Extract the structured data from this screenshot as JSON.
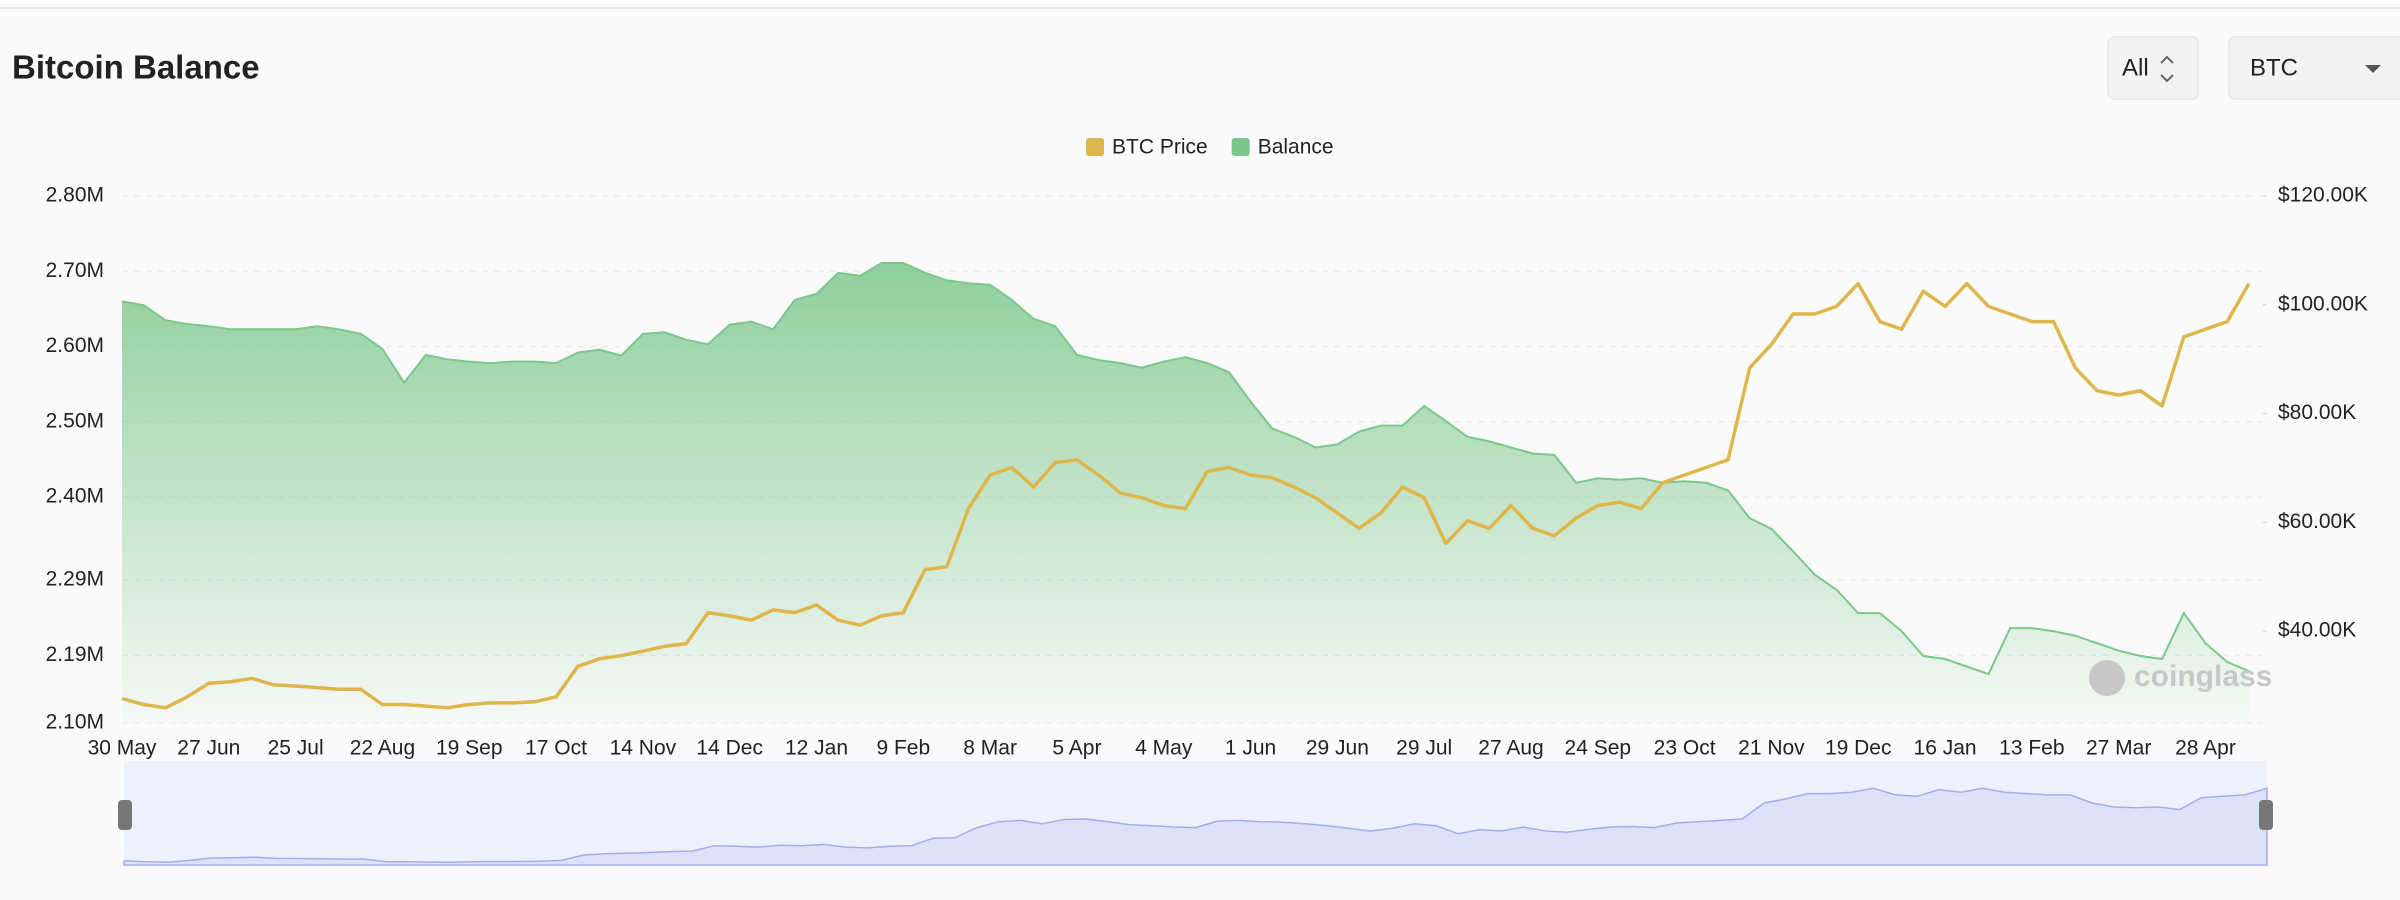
{
  "chart_data": {
    "type": "line",
    "title": "Bitcoin Balance",
    "watermark": "coinglass",
    "categories": [
      "30 May",
      null,
      null,
      null,
      "27 Jun",
      null,
      null,
      null,
      "25 Jul",
      null,
      null,
      null,
      "22 Aug",
      null,
      null,
      null,
      "19 Sep",
      null,
      null,
      null,
      "17 Oct",
      null,
      null,
      null,
      "14 Nov",
      null,
      null,
      null,
      "14 Dec",
      null,
      null,
      null,
      "12 Jan",
      null,
      null,
      null,
      "9 Feb",
      null,
      null,
      null,
      "8 Mar",
      null,
      null,
      null,
      "5 Apr",
      null,
      null,
      null,
      "4 May",
      null,
      null,
      null,
      "1 Jun",
      null,
      null,
      null,
      "29 Jun",
      null,
      null,
      null,
      "29 Jul",
      null,
      null,
      null,
      "27 Aug",
      null,
      null,
      null,
      "24 Sep",
      null,
      null,
      null,
      "23 Oct",
      null,
      null,
      null,
      "21 Nov",
      null,
      null,
      null,
      "19 Dec",
      null,
      null,
      null,
      "16 Jan",
      null,
      null,
      null,
      "13 Feb",
      null,
      null,
      null,
      "27 Mar",
      null,
      null,
      null,
      "28 Apr",
      null,
      null
    ],
    "series": [
      {
        "name": "BTC Price",
        "color": "#dfb64b",
        "axis": "y2",
        "values": [
          27600,
          26500,
          25900,
          27900,
          30400,
          30700,
          31300,
          30100,
          29900,
          29600,
          29300,
          29300,
          26500,
          26500,
          26200,
          25900,
          26500,
          26800,
          26800,
          27000,
          27900,
          33500,
          34900,
          35500,
          36300,
          37200,
          37700,
          43400,
          42800,
          42000,
          43900,
          43400,
          44800,
          42000,
          41100,
          42800,
          43400,
          51300,
          51800,
          62500,
          68700,
          70100,
          66500,
          71000,
          71500,
          68700,
          65400,
          64500,
          63100,
          62500,
          69300,
          70100,
          68700,
          68200,
          66500,
          64500,
          61700,
          58900,
          61700,
          66500,
          64500,
          56100,
          60300,
          58900,
          63100,
          58900,
          57500,
          60800,
          63100,
          63700,
          62500,
          67300,
          68700,
          70100,
          71500,
          88400,
          92700,
          98300,
          98300,
          99700,
          103900,
          96900,
          95500,
          102500,
          99700,
          103900,
          99700,
          98300,
          96900,
          96900,
          88400,
          84200,
          83400,
          84200,
          81400,
          94100,
          95500,
          96900,
          103900
        ]
      },
      {
        "name": "Balance",
        "color": "#7cc78b",
        "area": true,
        "values": [
          2660000,
          2655000,
          2635000,
          2630000,
          2627000,
          2623000,
          2623000,
          2623000,
          2623000,
          2627000,
          2623000,
          2617000,
          2597000,
          2552000,
          2589000,
          2583000,
          2580000,
          2578000,
          2580000,
          2580000,
          2578000,
          2592000,
          2596000,
          2588000,
          2617000,
          2619000,
          2609000,
          2603000,
          2629000,
          2633000,
          2623000,
          2662000,
          2670000,
          2698000,
          2694000,
          2711000,
          2711000,
          2698000,
          2688000,
          2684000,
          2682000,
          2662000,
          2637000,
          2627000,
          2589000,
          2582000,
          2578000,
          2572000,
          2580000,
          2586000,
          2578000,
          2566000,
          2527000,
          2491000,
          2480000,
          2466000,
          2470000,
          2487000,
          2495000,
          2495000,
          2521000,
          2501000,
          2480000,
          2474000,
          2466000,
          2458000,
          2456000,
          2419000,
          2425000,
          2423000,
          2425000,
          2419000,
          2421000,
          2419000,
          2409000,
          2372000,
          2358000,
          2328000,
          2297000,
          2277000,
          2246000,
          2246000,
          2222000,
          2189000,
          2185000,
          2175000,
          2165000,
          2226000,
          2226000,
          2222000,
          2216000,
          2206000,
          2196000,
          2189000,
          2185000,
          2246000,
          2206000,
          2181000,
          2169000
        ]
      }
    ],
    "ylim": [
      2100000,
      2800000
    ],
    "yticks": [
      {
        "value": 2100000,
        "label": "2.10M"
      },
      {
        "value": 2190000,
        "label": "2.19M"
      },
      {
        "value": 2290000,
        "label": "2.29M"
      },
      {
        "value": 2400000,
        "label": "2.40M"
      },
      {
        "value": 2500000,
        "label": "2.50M"
      },
      {
        "value": 2600000,
        "label": "2.60M"
      },
      {
        "value": 2700000,
        "label": "2.70M"
      },
      {
        "value": 2800000,
        "label": "2.80M"
      }
    ],
    "y2lim": [
      23100,
      120000
    ],
    "y2ticks": [
      {
        "value": 40000,
        "label": "$40.00K"
      },
      {
        "value": 60000,
        "label": "$60.00K"
      },
      {
        "value": 80000,
        "label": "$80.00K"
      },
      {
        "value": 100000,
        "label": "$100.00K"
      },
      {
        "value": 120000,
        "label": "$120.00K"
      }
    ],
    "grid": true,
    "legend": "top"
  },
  "controls": {
    "range": "All",
    "asset": "BTC"
  }
}
